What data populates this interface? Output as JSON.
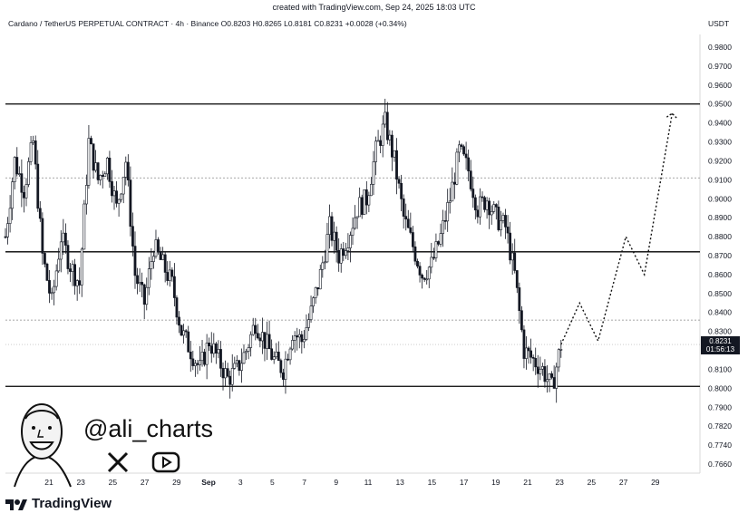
{
  "header": {
    "created": "created with TradingView.com, Sep 24, 2025 18:03 UTC",
    "symbol": "Cardano / TetherUS PERPETUAL CONTRACT · 4h · Binance",
    "ohlc": "O0.8203  H0.8265  L0.8181  C0.8231  +0.0028 (+0.34%)",
    "currency": "USDT"
  },
  "price_tag": {
    "price": "0.8231",
    "countdown": "01:56:13"
  },
  "branding": {
    "handle": "@ali_charts",
    "logo_text": "TradingView"
  },
  "icons": [
    "x-icon",
    "youtube-icon",
    "tradingview-logo-icon",
    "avatar-illustration"
  ],
  "colors": {
    "candle": "#131722",
    "background": "#ffffff",
    "line": "#000000",
    "dotted": "#8a8a8a"
  },
  "chart_data": {
    "type": "candlestick",
    "timeframe": "4h",
    "y_ticks": [
      "0.9800",
      "0.9700",
      "0.9600",
      "0.9500",
      "0.9400",
      "0.9300",
      "0.9200",
      "0.9100",
      "0.9000",
      "0.8900",
      "0.8800",
      "0.8700",
      "0.8600",
      "0.8500",
      "0.8400",
      "0.8300",
      "0.8200",
      "0.8100",
      "0.8000",
      "0.7900",
      "0.7820",
      "0.7740",
      "0.7660"
    ],
    "x_ticks": [
      "21",
      "23",
      "25",
      "27",
      "29",
      "Sep",
      "3",
      "5",
      "7",
      "9",
      "11",
      "13",
      "15",
      "17",
      "19",
      "21",
      "23",
      "25",
      "27",
      "29"
    ],
    "horizontal_levels_solid": [
      0.95,
      0.872,
      0.801
    ],
    "horizontal_levels_dotted": [
      0.911,
      0.836
    ],
    "current_price": 0.8231,
    "close_path": [
      [
        0,
        0.88
      ],
      [
        2,
        0.92
      ],
      [
        4,
        0.905
      ],
      [
        6,
        0.93
      ],
      [
        8,
        0.87
      ],
      [
        10,
        0.845
      ],
      [
        12,
        0.88
      ],
      [
        14,
        0.865
      ],
      [
        16,
        0.855
      ],
      [
        18,
        0.93
      ],
      [
        20,
        0.91
      ],
      [
        22,
        0.92
      ],
      [
        24,
        0.895
      ],
      [
        26,
        0.92
      ],
      [
        28,
        0.86
      ],
      [
        30,
        0.845
      ],
      [
        32,
        0.875
      ],
      [
        34,
        0.865
      ],
      [
        36,
        0.855
      ],
      [
        38,
        0.83
      ],
      [
        40,
        0.82
      ],
      [
        42,
        0.81
      ],
      [
        44,
        0.825
      ],
      [
        46,
        0.815
      ],
      [
        48,
        0.805
      ],
      [
        50,
        0.81
      ],
      [
        52,
        0.82
      ],
      [
        54,
        0.835
      ],
      [
        56,
        0.825
      ],
      [
        58,
        0.815
      ],
      [
        60,
        0.81
      ],
      [
        62,
        0.83
      ],
      [
        64,
        0.825
      ],
      [
        66,
        0.84
      ],
      [
        68,
        0.86
      ],
      [
        70,
        0.885
      ],
      [
        72,
        0.87
      ],
      [
        74,
        0.88
      ],
      [
        76,
        0.895
      ],
      [
        78,
        0.9
      ],
      [
        80,
        0.925
      ],
      [
        82,
        0.94
      ],
      [
        84,
        0.92
      ],
      [
        86,
        0.89
      ],
      [
        88,
        0.875
      ],
      [
        90,
        0.86
      ],
      [
        92,
        0.865
      ],
      [
        94,
        0.88
      ],
      [
        96,
        0.9
      ],
      [
        98,
        0.925
      ],
      [
        100,
        0.915
      ],
      [
        102,
        0.895
      ],
      [
        104,
        0.9
      ],
      [
        106,
        0.89
      ],
      [
        108,
        0.885
      ],
      [
        110,
        0.86
      ],
      [
        112,
        0.82
      ],
      [
        114,
        0.815
      ],
      [
        116,
        0.81
      ],
      [
        118,
        0.8
      ],
      [
        120,
        0.8231
      ]
    ],
    "projection_path": [
      [
        120,
        0.8231
      ],
      [
        124,
        0.845
      ],
      [
        128,
        0.825
      ],
      [
        134,
        0.88
      ],
      [
        138,
        0.86
      ],
      [
        144,
        0.945
      ]
    ]
  }
}
